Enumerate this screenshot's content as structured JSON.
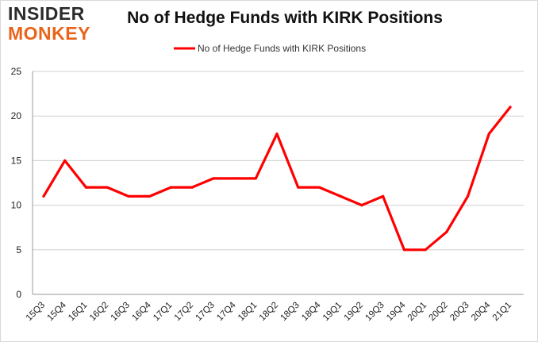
{
  "logo": {
    "line1": "INSIDER",
    "line2": "MONKEY"
  },
  "chart_data": {
    "type": "line",
    "title": "No of Hedge Funds with KIRK Positions",
    "xlabel": "",
    "ylabel": "",
    "categories": [
      "15Q3",
      "15Q4",
      "16Q1",
      "16Q2",
      "16Q3",
      "16Q4",
      "17Q1",
      "17Q2",
      "17Q3",
      "17Q4",
      "18Q1",
      "18Q2",
      "18Q3",
      "18Q4",
      "19Q1",
      "19Q2",
      "19Q3",
      "19Q4",
      "20Q1",
      "20Q2",
      "20Q3",
      "20Q4",
      "21Q1"
    ],
    "series": [
      {
        "name": "No of Hedge Funds with KIRK Positions",
        "values": [
          11,
          15,
          12,
          12,
          11,
          11,
          12,
          12,
          13,
          13,
          13,
          18,
          12,
          12,
          11,
          10,
          11,
          5,
          5,
          7,
          11,
          18,
          21
        ]
      }
    ],
    "ylim": [
      0,
      25
    ],
    "yticks": [
      0,
      5,
      10,
      15,
      20,
      25
    ],
    "grid": true,
    "legend": "top",
    "color": "#ff0000"
  }
}
